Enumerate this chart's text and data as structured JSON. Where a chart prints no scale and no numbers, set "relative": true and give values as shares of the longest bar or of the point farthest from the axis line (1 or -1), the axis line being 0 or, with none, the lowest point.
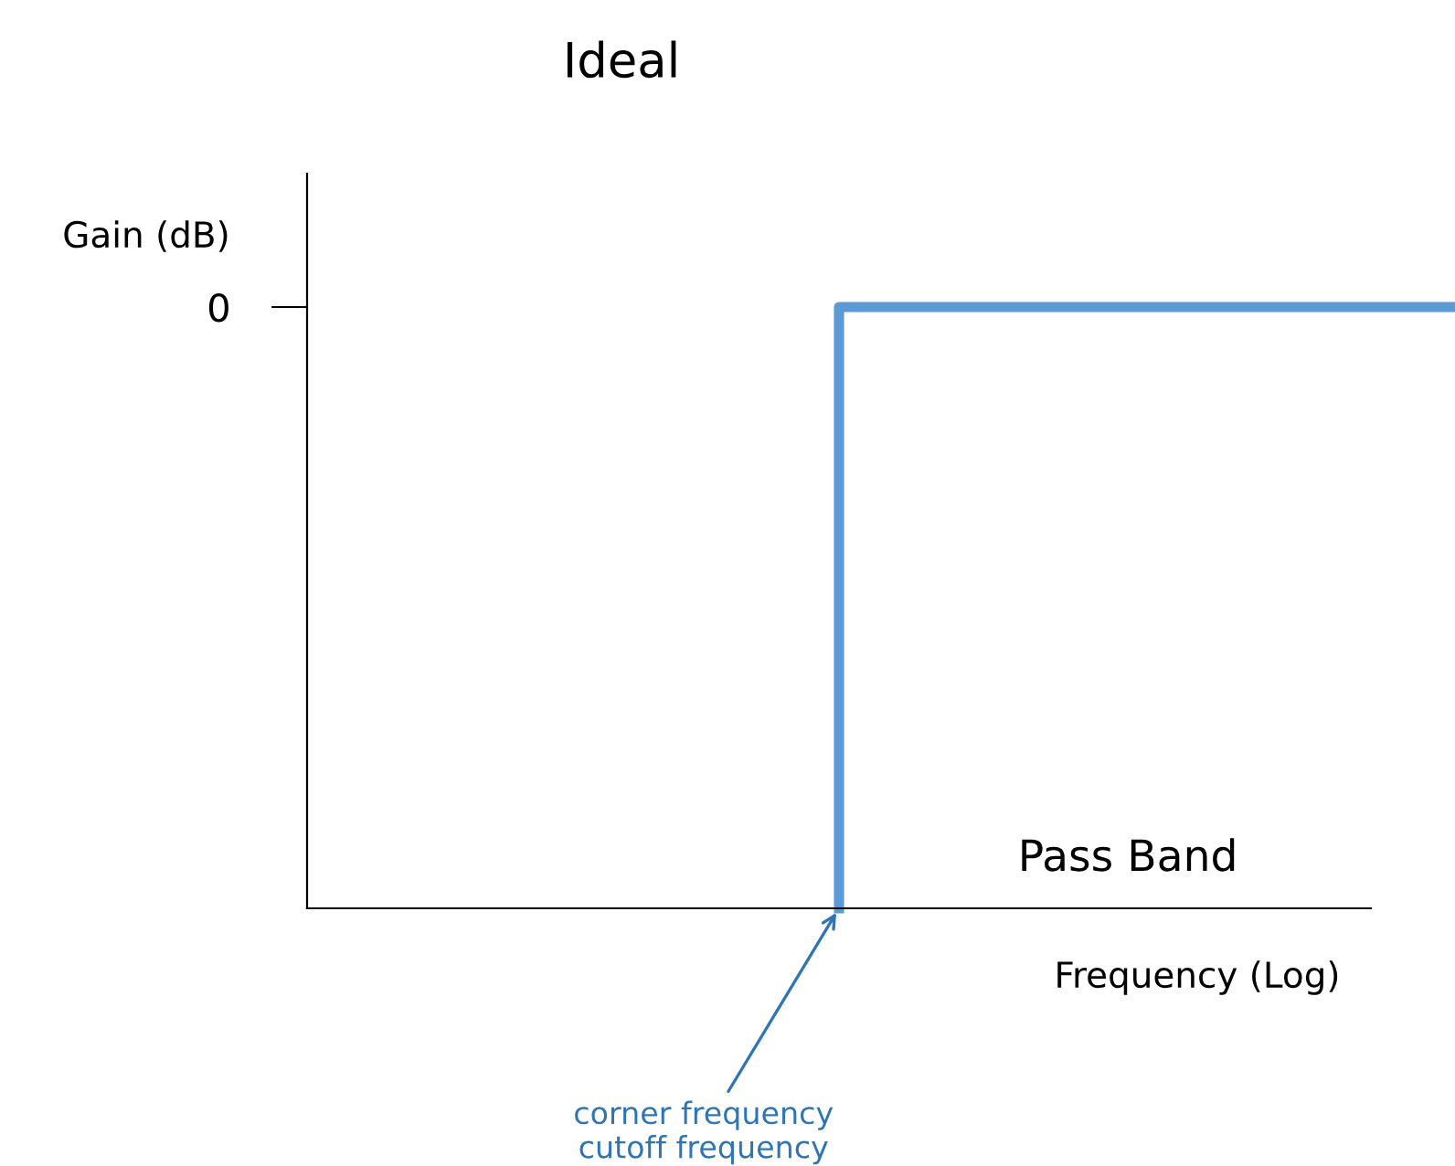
{
  "chart_data": {
    "type": "step",
    "title": "Ideal",
    "ylabel": "Gain (dB)",
    "xlabel": "Frequency (Log)",
    "relative": true,
    "categories": [
      null,
      null
    ],
    "series": [
      {
        "color": "#5b9bd5",
        "values": [
          0,
          1
        ]
      }
    ],
    "annotations": [
      "0",
      "Pass Band",
      "corner frequency\ncutoff frequency"
    ],
    "grid": false,
    "legend": false,
    "marker": "none",
    "line_style": "solid"
  }
}
